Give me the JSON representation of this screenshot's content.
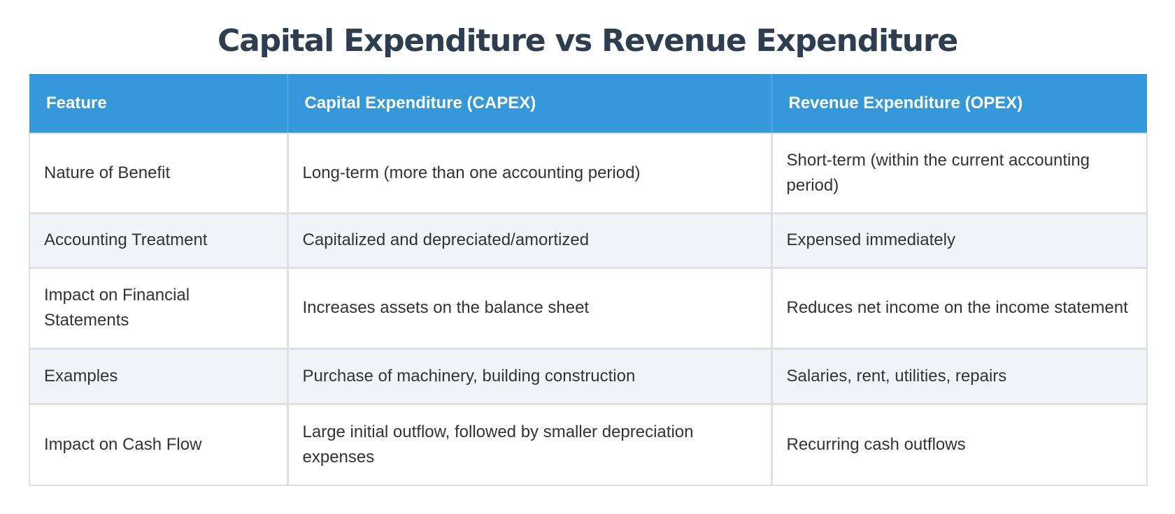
{
  "title": "Capital Expenditure vs Revenue Expenditure",
  "colors": {
    "title": "#2c3e50",
    "header_bg": "#3498db",
    "header_text": "#ffffff",
    "body_text": "#333333",
    "alt_row_bg": "#f1f4f9",
    "border": "#dfdfdf"
  },
  "table": {
    "headers": [
      "Feature",
      "Capital Expenditure (CAPEX)",
      "Revenue Expenditure (OPEX)"
    ],
    "rows": [
      {
        "feature": "Nature of Benefit",
        "capex": "Long-term (more than one accounting period)",
        "opex": "Short-term (within the current accounting period)"
      },
      {
        "feature": "Accounting Treatment",
        "capex": "Capitalized and depreciated/amortized",
        "opex": "Expensed immediately"
      },
      {
        "feature": "Impact on Financial Statements",
        "capex": "Increases assets on the balance sheet",
        "opex": "Reduces net income on the income statement"
      },
      {
        "feature": "Examples",
        "capex": "Purchase of machinery, building construction",
        "opex": "Salaries, rent, utilities, repairs"
      },
      {
        "feature": "Impact on Cash Flow",
        "capex": "Large initial outflow, followed by smaller depreciation expenses",
        "opex": "Recurring cash outflows"
      }
    ]
  }
}
